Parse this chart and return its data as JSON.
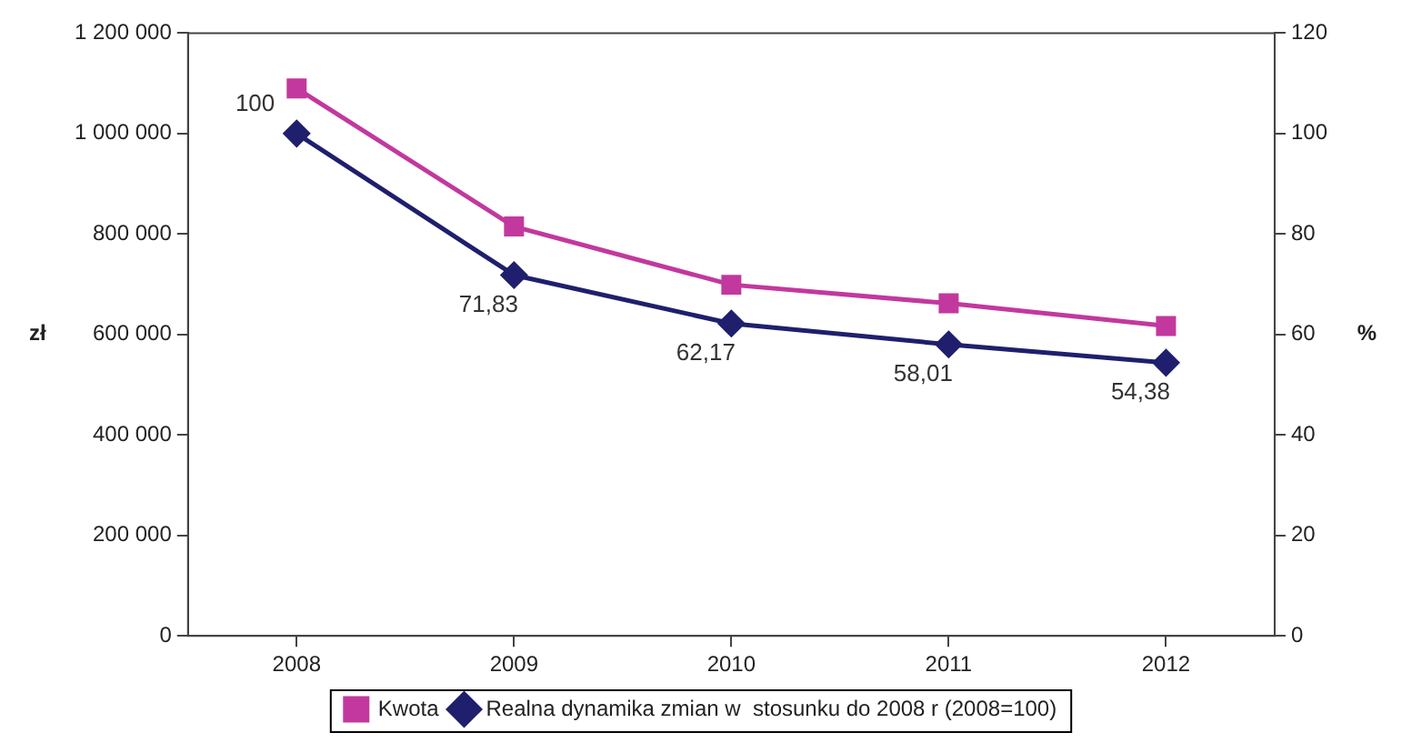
{
  "chart_data": {
    "type": "line",
    "categories": [
      "2008",
      "2009",
      "2010",
      "2011",
      "2012"
    ],
    "series": [
      {
        "name": "Kwota",
        "color": "#c2389e",
        "marker": "square",
        "values": [
          1090000,
          815000,
          699000,
          662000,
          617000
        ]
      },
      {
        "name": "Realna dynamika zmian w  stosunku do 2008 r (2008=100)",
        "color": "#1f1f6e",
        "marker": "diamond",
        "axis": "y2",
        "values": [
          100,
          71.83,
          62.17,
          58.01,
          54.38
        ],
        "value_labels": [
          "100",
          "71,83",
          "62,17",
          "58,01",
          "54,38"
        ]
      }
    ],
    "ylabel": "zł",
    "y2label": "%",
    "ylim": [
      0,
      1200000
    ],
    "yticks": [
      {
        "value": 0,
        "label": "0"
      },
      {
        "value": 200000,
        "label": "200 000"
      },
      {
        "value": 400000,
        "label": "400 000"
      },
      {
        "value": 600000,
        "label": "600 000"
      },
      {
        "value": 800000,
        "label": "800 000"
      },
      {
        "value": 1000000,
        "label": "1 000 000"
      },
      {
        "value": 1200000,
        "label": "1 200 000"
      }
    ],
    "y2lim": [
      0,
      120
    ],
    "y2ticks": [
      0,
      20,
      40,
      60,
      80,
      100,
      120
    ],
    "legend": "bottom",
    "line_style": "solid"
  }
}
